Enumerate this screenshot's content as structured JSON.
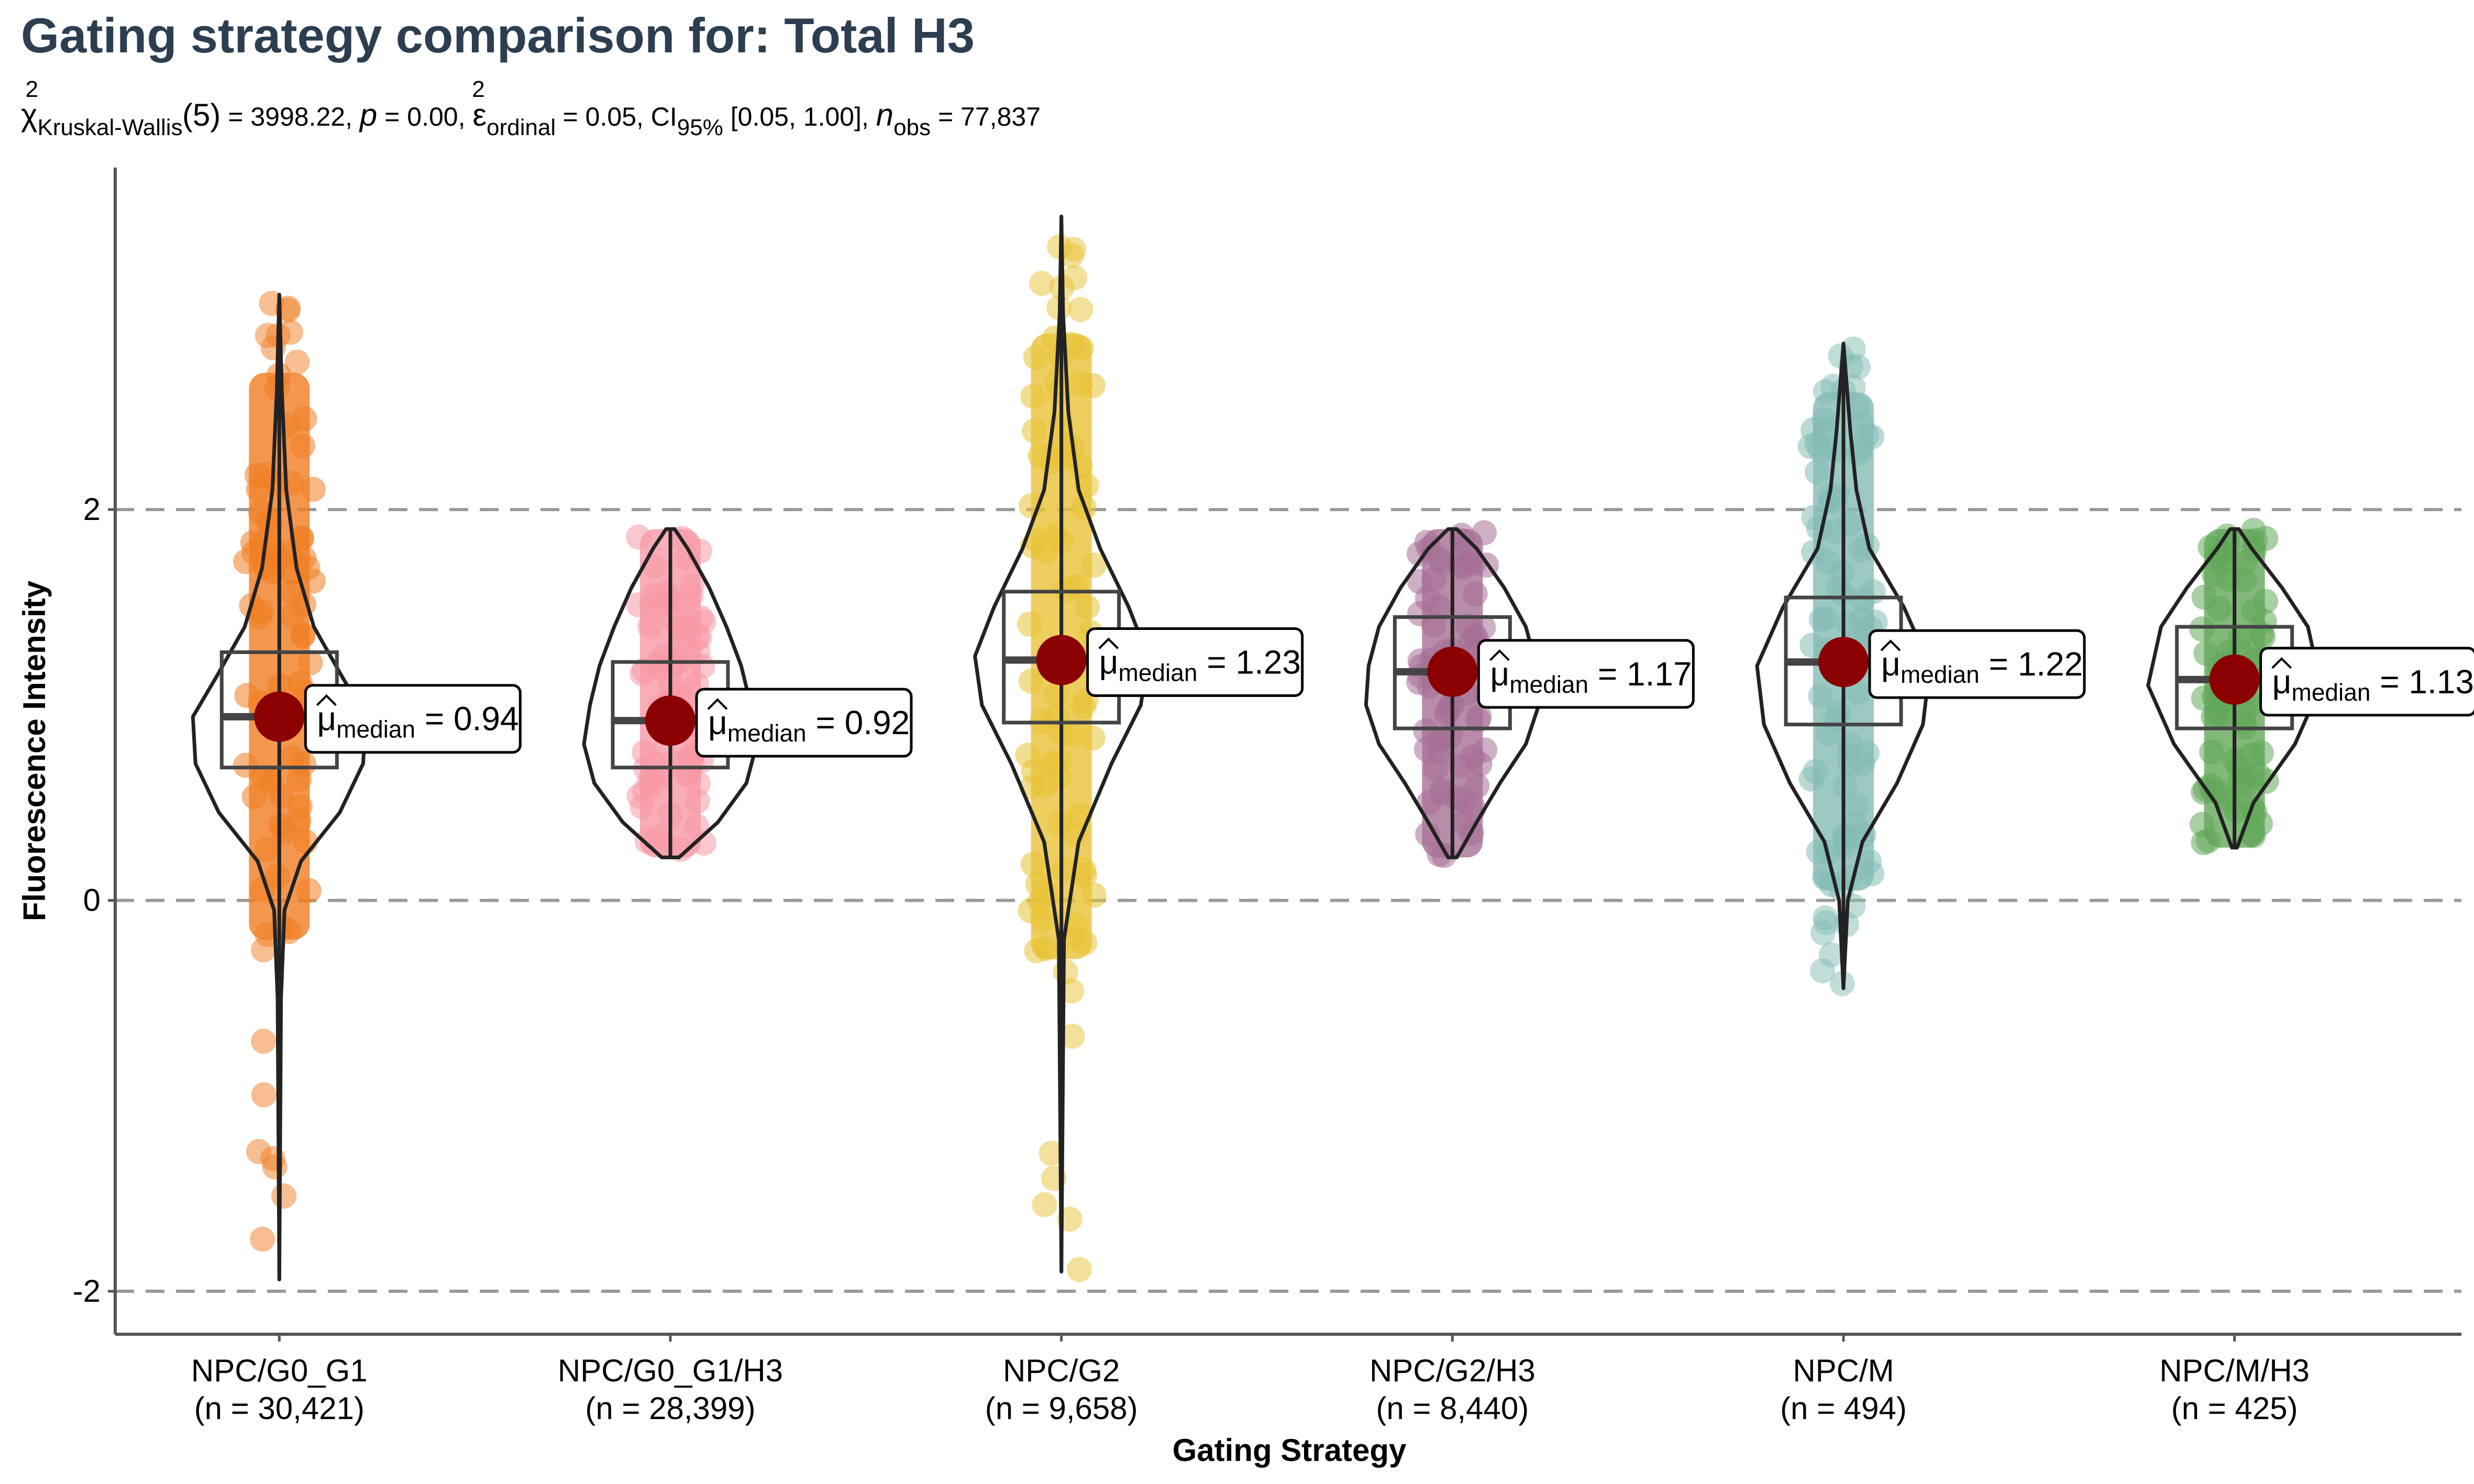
{
  "chart_data": {
    "type": "violin",
    "title": "Gating strategy comparison for: Total H3",
    "subtitle": {
      "chi_symbol": "χ",
      "chi_sub": "Kruskal-Wallis",
      "chi_sup": "2",
      "df": "(5)",
      "eq1": " = 3998.22, ",
      "p_symbol": "p",
      "eq2": " = 0.00, ",
      "eps_symbol": "ε",
      "eps_sub": "ordinal",
      "eps_sup": "2",
      "eq3": " = 0.05, CI",
      "ci_sub": "95%",
      "eq4": " [0.05, 1.00], ",
      "n_symbol": "n",
      "n_sub": "obs",
      "eq5": " = 77,837"
    },
    "xlabel": "Gating Strategy",
    "ylabel": "Fluorescence Intensity",
    "ylim": [
      -2.22,
      3.75
    ],
    "yticks": [
      -2,
      0,
      2
    ],
    "ytick_labels": [
      "-2",
      "0",
      "2"
    ],
    "gridlines_y": [
      -2,
      0,
      2
    ],
    "median_label_prefix": "μ",
    "median_label_sub": "median",
    "categories": [
      {
        "name": "NPC/G0_G1",
        "n_label": "(n = 30,421)",
        "color": "#f07d23",
        "median": 0.94,
        "median_label": " = 0.94",
        "q1": 0.68,
        "q3": 1.27,
        "whisker_low": -1.94,
        "whisker_high": 3.1,
        "violin_shape": [
          [
            -1.94,
            0.0
          ],
          [
            -0.5,
            0.02
          ],
          [
            -0.05,
            0.06
          ],
          [
            0.2,
            0.25
          ],
          [
            0.45,
            0.7
          ],
          [
            0.7,
            0.97
          ],
          [
            0.94,
            1.0
          ],
          [
            1.15,
            0.72
          ],
          [
            1.4,
            0.4
          ],
          [
            1.7,
            0.2
          ],
          [
            2.1,
            0.08
          ],
          [
            2.6,
            0.03
          ],
          [
            3.1,
            0.0
          ]
        ],
        "points_range": [
          -0.2,
          2.7
        ]
      },
      {
        "name": "NPC/G0_G1/H3",
        "n_label": "(n = 28,399)",
        "color": "#f899a6",
        "median": 0.92,
        "median_label": " = 0.92",
        "q1": 0.68,
        "q3": 1.22,
        "whisker_low": 0.22,
        "whisker_high": 1.9,
        "violin_shape": [
          [
            0.22,
            0.1
          ],
          [
            0.4,
            0.55
          ],
          [
            0.6,
            0.88
          ],
          [
            0.8,
            1.0
          ],
          [
            1.0,
            0.93
          ],
          [
            1.2,
            0.82
          ],
          [
            1.4,
            0.65
          ],
          [
            1.6,
            0.45
          ],
          [
            1.8,
            0.2
          ],
          [
            1.9,
            0.05
          ]
        ],
        "points_range": [
          0.22,
          1.9
        ]
      },
      {
        "name": "NPC/G2",
        "n_label": "(n = 9,658)",
        "color": "#e8c236",
        "median": 1.23,
        "median_label": " = 1.23",
        "q1": 0.91,
        "q3": 1.58,
        "whisker_low": -1.9,
        "whisker_high": 3.5,
        "violin_shape": [
          [
            -1.9,
            0.0
          ],
          [
            -0.2,
            0.03
          ],
          [
            0.3,
            0.2
          ],
          [
            0.7,
            0.58
          ],
          [
            1.0,
            0.92
          ],
          [
            1.25,
            1.0
          ],
          [
            1.5,
            0.78
          ],
          [
            1.8,
            0.45
          ],
          [
            2.1,
            0.2
          ],
          [
            2.5,
            0.08
          ],
          [
            3.0,
            0.02
          ],
          [
            3.5,
            0.0
          ]
        ],
        "points_range": [
          -0.3,
          2.9
        ]
      },
      {
        "name": "NPC/G2/H3",
        "n_label": "(n = 8,440)",
        "color": "#a66f96",
        "median": 1.17,
        "median_label": " = 1.17",
        "q1": 0.88,
        "q3": 1.45,
        "whisker_low": 0.22,
        "whisker_high": 1.9,
        "violin_shape": [
          [
            0.22,
            0.05
          ],
          [
            0.4,
            0.28
          ],
          [
            0.6,
            0.55
          ],
          [
            0.8,
            0.85
          ],
          [
            1.0,
            1.0
          ],
          [
            1.2,
            0.97
          ],
          [
            1.4,
            0.85
          ],
          [
            1.6,
            0.6
          ],
          [
            1.8,
            0.28
          ],
          [
            1.9,
            0.05
          ]
        ],
        "points_range": [
          0.22,
          1.9
        ]
      },
      {
        "name": "NPC/M",
        "n_label": "(n = 494)",
        "color": "#84bcb4",
        "median": 1.22,
        "median_label": " = 1.22",
        "q1": 0.9,
        "q3": 1.55,
        "whisker_low": -0.45,
        "whisker_high": 2.85,
        "violin_shape": [
          [
            -0.45,
            0.0
          ],
          [
            0.0,
            0.05
          ],
          [
            0.3,
            0.22
          ],
          [
            0.6,
            0.62
          ],
          [
            0.9,
            0.92
          ],
          [
            1.2,
            1.0
          ],
          [
            1.5,
            0.7
          ],
          [
            1.8,
            0.3
          ],
          [
            2.1,
            0.15
          ],
          [
            2.4,
            0.08
          ],
          [
            2.85,
            0.0
          ]
        ],
        "points_range": [
          0.05,
          2.6
        ]
      },
      {
        "name": "NPC/M/H3",
        "n_label": "(n = 425)",
        "color": "#63a85a",
        "median": 1.13,
        "median_label": " = 1.13",
        "q1": 0.88,
        "q3": 1.4,
        "whisker_low": 0.27,
        "whisker_high": 1.9,
        "violin_shape": [
          [
            0.27,
            0.03
          ],
          [
            0.5,
            0.22
          ],
          [
            0.8,
            0.7
          ],
          [
            1.1,
            1.0
          ],
          [
            1.4,
            0.85
          ],
          [
            1.6,
            0.55
          ],
          [
            1.8,
            0.2
          ],
          [
            1.9,
            0.05
          ]
        ],
        "points_range": [
          0.27,
          1.9
        ]
      }
    ],
    "grid": "horizontal-dashed",
    "legend": "none"
  }
}
